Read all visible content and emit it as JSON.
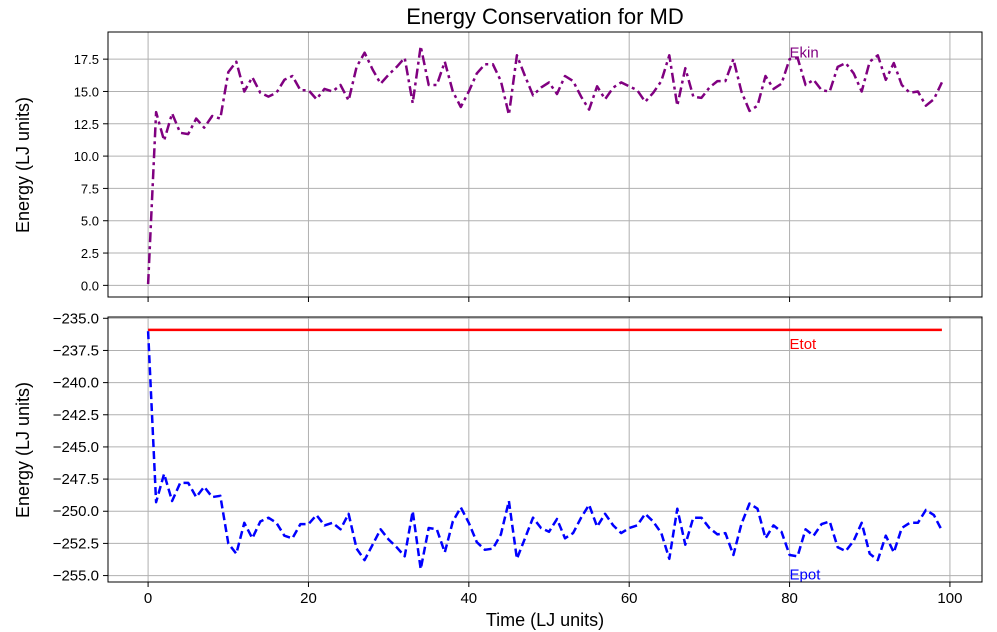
{
  "chart_data": {
    "type": "line",
    "title": "Energy Conservation for MD",
    "xlabel": "Time (LJ units)",
    "xlim": [
      -5,
      104
    ],
    "xticks": [
      "0",
      "20",
      "40",
      "60",
      "80",
      "100"
    ],
    "xtick_values": [
      0,
      20,
      40,
      60,
      80,
      100
    ],
    "grid": true,
    "panels": [
      {
        "ylabel": "Energy (LJ units)",
        "ylim": [
          -0.9,
          19.6
        ],
        "yticks": [
          "0.0",
          "2.5",
          "5.0",
          "7.5",
          "10.0",
          "12.5",
          "15.0",
          "17.5"
        ],
        "ytick_values": [
          0,
          2.5,
          5,
          7.5,
          10,
          12.5,
          15,
          17.5
        ],
        "series": [
          {
            "name": "Ekin",
            "color": "#800080",
            "style": "dashdot",
            "label_at": [
              80,
              18.0
            ],
            "x": [
              0,
              1,
              2,
              3,
              4,
              5,
              6,
              7,
              8,
              9,
              10,
              11,
              12,
              13,
              14,
              15,
              16,
              17,
              18,
              19,
              20,
              21,
              22,
              23,
              24,
              25,
              26,
              27,
              28,
              29,
              30,
              31,
              32,
              33,
              34,
              35,
              36,
              37,
              38,
              39,
              40,
              41,
              42,
              43,
              44,
              45,
              46,
              47,
              48,
              49,
              50,
              51,
              52,
              53,
              54,
              55,
              56,
              57,
              58,
              59,
              60,
              61,
              62,
              63,
              64,
              65,
              66,
              67,
              68,
              69,
              70,
              71,
              72,
              73,
              74,
              75,
              76,
              77,
              78,
              79,
              80,
              81,
              82,
              83,
              84,
              85,
              86,
              87,
              88,
              89,
              90,
              91,
              92,
              93,
              94,
              95,
              96,
              97,
              98,
              99
            ],
            "values": [
              0.1,
              13.4,
              11.2,
              13.3,
              11.8,
              11.7,
              12.9,
              12.2,
              13.1,
              12.9,
              16.5,
              17.3,
              15.0,
              16.1,
              14.9,
              14.6,
              14.9,
              15.9,
              16.2,
              15.1,
              15.1,
              14.4,
              15.2,
              15.0,
              15.5,
              14.3,
              16.9,
              18.0,
              16.7,
              15.6,
              16.3,
              16.9,
              17.6,
              14.1,
              18.5,
              15.5,
              15.5,
              17.3,
              15.0,
              13.8,
              15.0,
              16.4,
              17.1,
              17.1,
              15.8,
              13.2,
              17.8,
              16.2,
              14.7,
              15.3,
              15.7,
              14.8,
              16.2,
              15.8,
              14.6,
              13.6,
              15.4,
              14.4,
              15.3,
              15.7,
              15.4,
              15.1,
              14.2,
              14.9,
              15.8,
              17.8,
              13.9,
              16.8,
              14.6,
              14.5,
              15.3,
              15.8,
              15.8,
              17.5,
              15.0,
              13.5,
              13.9,
              16.2,
              15.2,
              15.6,
              17.5,
              17.6,
              15.5,
              15.9,
              15.1,
              15.0,
              16.9,
              17.2,
              16.4,
              15.0,
              17.3,
              17.8,
              15.9,
              17.2,
              15.5,
              14.9,
              15.0,
              13.9,
              14.4,
              15.7
            ]
          }
        ]
      },
      {
        "ylabel": "Energy (LJ units)",
        "ylim": [
          -255.5,
          -234.9
        ],
        "yticks": [
          "−235.0",
          "−237.5",
          "−240.0",
          "−242.5",
          "−245.0",
          "−247.5",
          "−250.0",
          "−252.5",
          "−255.0"
        ],
        "ytick_values": [
          -235,
          -237.5,
          -240,
          -242.5,
          -245,
          -247.5,
          -250,
          -252.5,
          -255
        ],
        "series": [
          {
            "name": "Etot",
            "color": "#ff0000",
            "style": "solid",
            "label_at": [
              80,
              -237.0
            ],
            "x": [
              0,
              99
            ],
            "values": [
              -235.9,
              -235.9
            ]
          },
          {
            "name": "Epot",
            "color": "#0000ff",
            "style": "dashed",
            "label_at": [
              80,
              -254.9
            ],
            "x": [
              0,
              1,
              2,
              3,
              4,
              5,
              6,
              7,
              8,
              9,
              10,
              11,
              12,
              13,
              14,
              15,
              16,
              17,
              18,
              19,
              20,
              21,
              22,
              23,
              24,
              25,
              26,
              27,
              28,
              29,
              30,
              31,
              32,
              33,
              34,
              35,
              36,
              37,
              38,
              39,
              40,
              41,
              42,
              43,
              44,
              45,
              46,
              47,
              48,
              49,
              50,
              51,
              52,
              53,
              54,
              55,
              56,
              57,
              58,
              59,
              60,
              61,
              62,
              63,
              64,
              65,
              66,
              67,
              68,
              69,
              70,
              71,
              72,
              73,
              74,
              75,
              76,
              77,
              78,
              79,
              80,
              81,
              82,
              83,
              84,
              85,
              86,
              87,
              88,
              89,
              90,
              91,
              92,
              93,
              94,
              95,
              96,
              97,
              98,
              99
            ],
            "values": [
              -236.0,
              -249.3,
              -247.1,
              -249.2,
              -247.8,
              -247.8,
              -248.9,
              -248.1,
              -248.9,
              -248.8,
              -252.5,
              -253.3,
              -250.9,
              -252.1,
              -250.8,
              -250.5,
              -250.9,
              -251.9,
              -252.1,
              -251.0,
              -251.0,
              -250.3,
              -251.1,
              -250.9,
              -251.4,
              -250.2,
              -252.9,
              -253.8,
              -252.6,
              -251.4,
              -252.2,
              -252.8,
              -253.5,
              -250.0,
              -254.5,
              -251.3,
              -251.4,
              -253.2,
              -250.8,
              -249.7,
              -250.9,
              -252.4,
              -253.0,
              -252.9,
              -251.8,
              -249.2,
              -253.7,
              -252.1,
              -250.5,
              -251.3,
              -251.6,
              -250.6,
              -252.1,
              -251.7,
              -250.5,
              -249.5,
              -251.2,
              -250.2,
              -251.1,
              -251.7,
              -251.3,
              -251.1,
              -250.2,
              -250.8,
              -251.7,
              -253.7,
              -249.8,
              -252.6,
              -250.5,
              -250.5,
              -251.3,
              -251.8,
              -251.7,
              -253.4,
              -251.0,
              -249.4,
              -249.8,
              -252.1,
              -251.1,
              -251.6,
              -253.4,
              -253.5,
              -251.4,
              -251.9,
              -251.0,
              -250.8,
              -252.8,
              -253.1,
              -252.3,
              -250.9,
              -253.3,
              -253.8,
              -251.9,
              -253.2,
              -251.3,
              -250.9,
              -250.9,
              -249.9,
              -250.3,
              -251.5
            ]
          }
        ]
      }
    ]
  }
}
